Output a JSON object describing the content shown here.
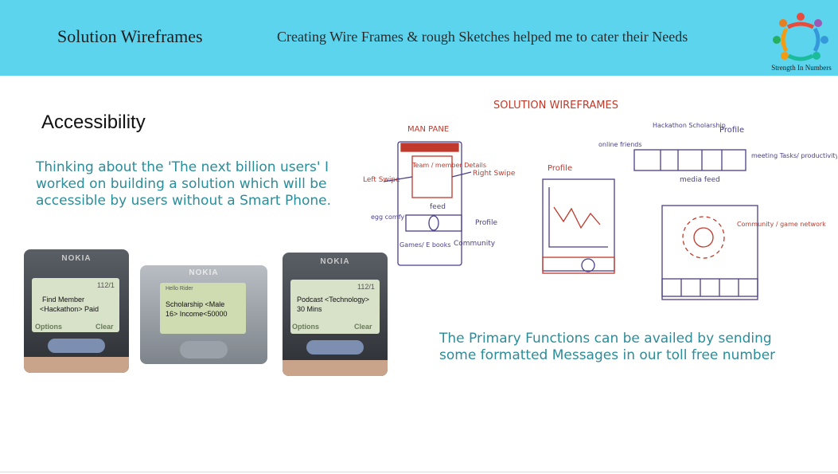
{
  "header": {
    "title": "Solution Wireframes",
    "subtitle": "Creating Wire Frames & rough Sketches helped me to cater their  Needs",
    "logo_tagline": "Strength In Numbers",
    "logo_icon": "people-circle-logo"
  },
  "section": {
    "title": "Accessibility",
    "paragraph": "Thinking about the 'The next billion users' I worked on building a solution which will be accessible by users without a Smart Phone.",
    "bottom_paragraph": "The Primary Functions can be availed by sending some formatted Messages in our toll free number"
  },
  "phones": [
    {
      "brand": "NOKIA",
      "status": "112/1",
      "line1": "Find Member",
      "line2": "<Hackathon> Paid",
      "left_soft": "Options",
      "right_soft": "Clear"
    },
    {
      "brand": "NOKIA",
      "status": "Hello Rider",
      "line1": "Scholarship <Male",
      "line2": "16> Income<50000"
    },
    {
      "brand": "NOKIA",
      "status": "112/1",
      "line1": "Podcast <Technology>",
      "line2": "30 Mins",
      "left_soft": "Options",
      "right_soft": "Clear"
    }
  ],
  "sketch": {
    "title": "SOLUTION  WIREFRAMES",
    "main_page": "MAN PANE",
    "team_box": "Team / member Details",
    "left_swipe": "Left Swipe",
    "right_swipe": "Right Swipe",
    "feed": "feed",
    "profile": "Profile",
    "community": "Community",
    "egg_comfy": "egg comfy",
    "games_ebooks": "Games/ E books",
    "profile_label": "Profile",
    "hackathon": "Hackathon Scholarship",
    "profile_top": "Profile",
    "online_friends": "online friends",
    "meeting": "meeting Tasks/ productivity",
    "media_feed": "media feed",
    "community_net": "Community / game network"
  },
  "colors": {
    "header_bg": "#5cd4ee",
    "accent_text": "#2a8d9a",
    "sketch_ink": "#4a3f8a",
    "sketch_red": "#c0392b"
  }
}
